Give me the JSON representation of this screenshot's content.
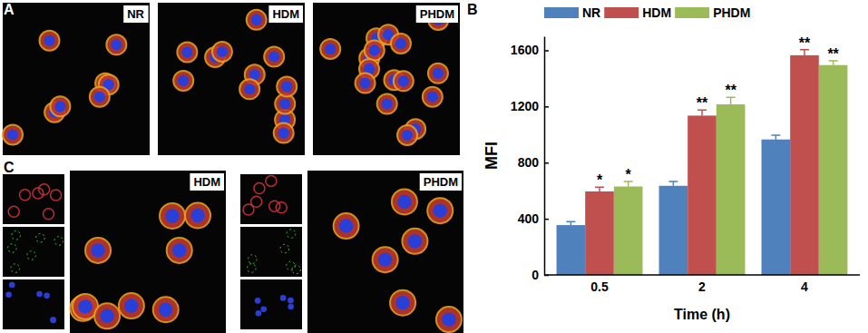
{
  "chart_data": {
    "type": "bar",
    "panel": "B",
    "categories": [
      "0.5",
      "2",
      "4"
    ],
    "x_label": "Time (h)",
    "y_label": "MFI",
    "ylim": [
      0,
      1700
    ],
    "yticks": [
      0,
      400,
      800,
      1200,
      1600
    ],
    "grid": false,
    "legend": "top",
    "series": [
      {
        "name": "NR",
        "color": "#4f81bd",
        "values": [
          355,
          635,
          965
        ],
        "errors": [
          25,
          30,
          30
        ]
      },
      {
        "name": "HDM",
        "color": "#c0504d",
        "values": [
          595,
          1135,
          1565
        ],
        "errors": [
          30,
          40,
          40
        ],
        "annotations": [
          "*",
          "**",
          "**"
        ]
      },
      {
        "name": "PHDM",
        "color": "#9bbb59",
        "values": [
          630,
          1215,
          1495
        ],
        "errors": [
          35,
          50,
          30
        ],
        "annotations": [
          "*",
          "**",
          "**"
        ]
      }
    ]
  },
  "figure": {
    "panel_a": {
      "label": "A",
      "images": [
        "NR",
        "HDM",
        "PHDM"
      ]
    },
    "panel_c": {
      "label": "C",
      "images": [
        "HDM",
        "PHDM"
      ]
    }
  }
}
